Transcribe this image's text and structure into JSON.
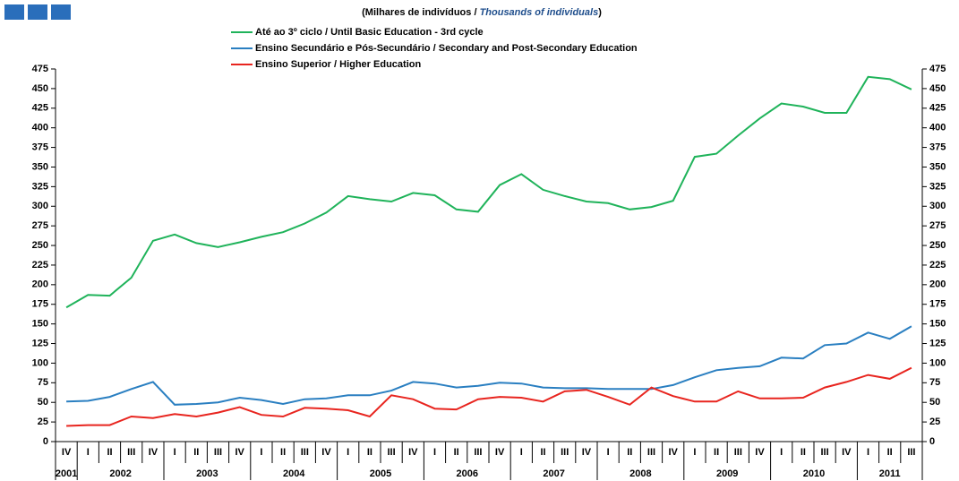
{
  "chart_data": {
    "type": "line",
    "subtitle": [
      "(Milhares de indivíduos  / ",
      "Thousands of individuals",
      ")"
    ],
    "categories": [
      "IV",
      "I",
      "II",
      "III",
      "IV",
      "I",
      "II",
      "III",
      "IV",
      "I",
      "II",
      "III",
      "IV",
      "I",
      "II",
      "III",
      "IV",
      "I",
      "II",
      "III",
      "IV",
      "I",
      "II",
      "III",
      "IV",
      "I",
      "II",
      "III",
      "IV",
      "I",
      "II",
      "III",
      "IV",
      "I",
      "II",
      "III",
      "IV",
      "I",
      "II",
      "III"
    ],
    "years": [
      "2001",
      "2002",
      "2003",
      "2004",
      "2005",
      "2006",
      "2007",
      "2008",
      "2009",
      "2010",
      "2011"
    ],
    "series": [
      {
        "name": "Até ao 3º ciclo / Until Basic Education - 3rd cycle",
        "color": "#1fb35a",
        "values": [
          171,
          187,
          186,
          209,
          256,
          264,
          253,
          248,
          254,
          261,
          267,
          278,
          292,
          313,
          309,
          306,
          317,
          314,
          296,
          293,
          327,
          341,
          321,
          313,
          306,
          304,
          296,
          299,
          307,
          363,
          367,
          390,
          412,
          431,
          427,
          419,
          419,
          465,
          462,
          449
        ]
      },
      {
        "name": "Ensino Secundário e Pós-Secundário / Secondary and Post-Secondary Education",
        "color": "#2a7fc1",
        "values": [
          51,
          52,
          57,
          67,
          76,
          47,
          48,
          50,
          56,
          53,
          48,
          54,
          55,
          59,
          59,
          65,
          76,
          74,
          69,
          71,
          75,
          74,
          69,
          68,
          68,
          67,
          67,
          67,
          72,
          82,
          91,
          94,
          96,
          107,
          106,
          123,
          125,
          139,
          131,
          147
        ]
      },
      {
        "name": "Ensino Superior / Higher Education",
        "color": "#e8251f",
        "values": [
          20,
          21,
          21,
          32,
          30,
          35,
          32,
          37,
          44,
          34,
          32,
          43,
          42,
          40,
          32,
          59,
          54,
          42,
          41,
          54,
          57,
          56,
          51,
          64,
          66,
          57,
          47,
          69,
          58,
          51,
          51,
          64,
          55,
          55,
          56,
          69,
          76,
          85,
          80,
          94
        ]
      }
    ],
    "ylim": [
      0,
      475
    ],
    "yticks": [
      0,
      25,
      50,
      75,
      100,
      125,
      150,
      175,
      200,
      225,
      250,
      275,
      300,
      325,
      350,
      375,
      400,
      425,
      450,
      475
    ]
  }
}
